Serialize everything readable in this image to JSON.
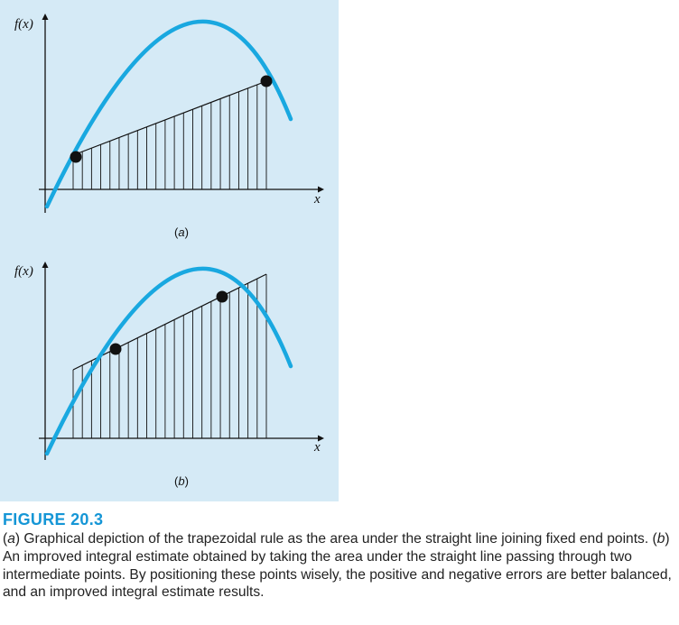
{
  "figure": {
    "panels": [
      {
        "id": "a",
        "ylabel": "f(x)",
        "xlabel": "x",
        "label": "(a)"
      },
      {
        "id": "b",
        "ylabel": "f(x)",
        "xlabel": "x",
        "label": "(b)"
      }
    ],
    "colors": {
      "panel_bg": "#d5eaf6",
      "curve": "#19a8e0",
      "title": "#1596d6",
      "points": "#111111"
    }
  },
  "caption": {
    "title": "FIGURE 20.3",
    "text": "(a) Graphical depiction of the trapezoidal rule as the area under the straight line joining fixed end points. (b) An improved integral estimate obtained by taking the area under the straight line passing through two intermediate points. By positioning these points wisely, the positive and negative errors are better balanced, and an improved integral estimate results."
  }
}
